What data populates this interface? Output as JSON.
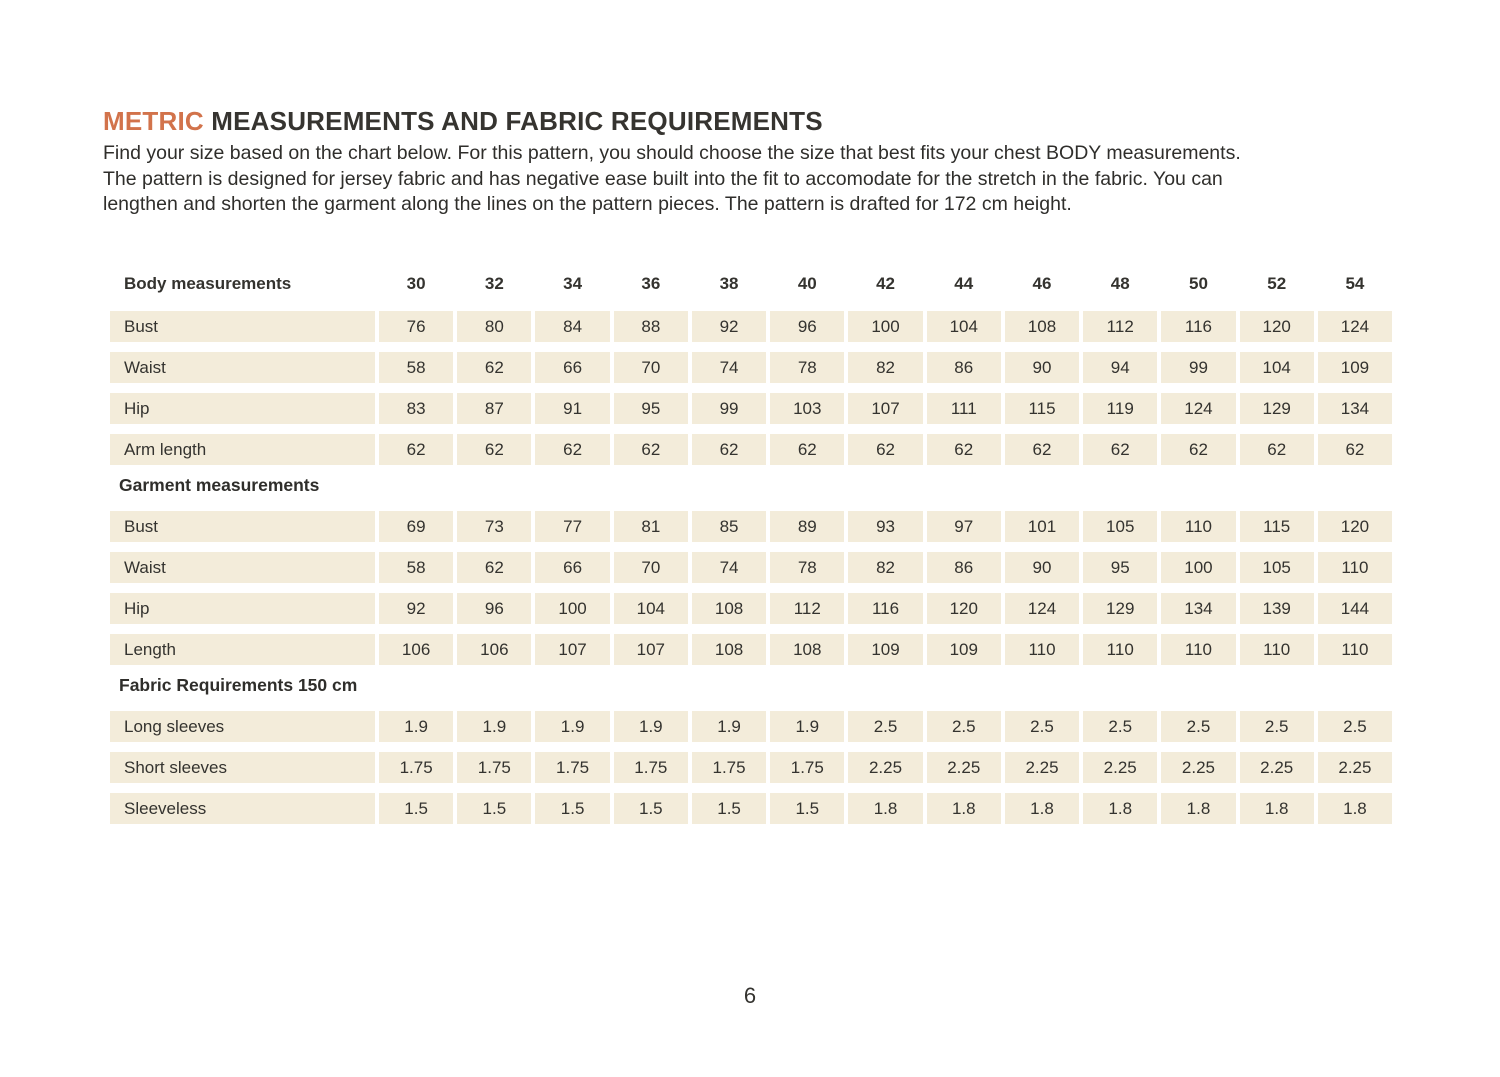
{
  "page": {
    "title_accent": "METRIC",
    "title_rest": " MEASUREMENTS AND FABRIC REQUIREMENTS",
    "intro_lines": [
      "Find your size based on the chart below. For this pattern, you should choose the size that best fits your chest BODY measurements.",
      "The pattern is designed for jersey fabric and has negative ease built into the fit to accomodate for the stretch in the fabric. You can",
      "lengthen and shorten the garment along the lines on the pattern pieces. The pattern is drafted for 172 cm height."
    ],
    "page_number": "6"
  },
  "colors": {
    "accent_orange": "#d2734b",
    "cell_cream": "#f3ecda",
    "text_dark": "#2f2e2b",
    "background": "#ffffff"
  },
  "table": {
    "sizes": [
      "30",
      "32",
      "34",
      "36",
      "38",
      "40",
      "42",
      "44",
      "46",
      "48",
      "50",
      "52",
      "54"
    ],
    "sections": [
      {
        "header": "Body measurements",
        "rows": [
          {
            "label": "Bust",
            "values": [
              "76",
              "80",
              "84",
              "88",
              "92",
              "96",
              "100",
              "104",
              "108",
              "112",
              "116",
              "120",
              "124"
            ]
          },
          {
            "label": "Waist",
            "values": [
              "58",
              "62",
              "66",
              "70",
              "74",
              "78",
              "82",
              "86",
              "90",
              "94",
              "99",
              "104",
              "109"
            ]
          },
          {
            "label": "Hip",
            "values": [
              "83",
              "87",
              "91",
              "95",
              "99",
              "103",
              "107",
              "111",
              "115",
              "119",
              "124",
              "129",
              "134"
            ]
          },
          {
            "label": "Arm length",
            "values": [
              "62",
              "62",
              "62",
              "62",
              "62",
              "62",
              "62",
              "62",
              "62",
              "62",
              "62",
              "62",
              "62"
            ]
          }
        ]
      },
      {
        "header": "Garment measurements",
        "rows": [
          {
            "label": "Bust",
            "values": [
              "69",
              "73",
              "77",
              "81",
              "85",
              "89",
              "93",
              "97",
              "101",
              "105",
              "110",
              "115",
              "120"
            ]
          },
          {
            "label": "Waist",
            "values": [
              "58",
              "62",
              "66",
              "70",
              "74",
              "78",
              "82",
              "86",
              "90",
              "95",
              "100",
              "105",
              "110"
            ]
          },
          {
            "label": "Hip",
            "values": [
              "92",
              "96",
              "100",
              "104",
              "108",
              "112",
              "116",
              "120",
              "124",
              "129",
              "134",
              "139",
              "144"
            ]
          },
          {
            "label": "Length",
            "values": [
              "106",
              "106",
              "107",
              "107",
              "108",
              "108",
              "109",
              "109",
              "110",
              "110",
              "110",
              "110",
              "110"
            ]
          }
        ]
      },
      {
        "header": "Fabric Requirements 150 cm",
        "rows": [
          {
            "label": "Long sleeves",
            "values": [
              "1.9",
              "1.9",
              "1.9",
              "1.9",
              "1.9",
              "1.9",
              "2.5",
              "2.5",
              "2.5",
              "2.5",
              "2.5",
              "2.5",
              "2.5"
            ]
          },
          {
            "label": "Short sleeves",
            "values": [
              "1.75",
              "1.75",
              "1.75",
              "1.75",
              "1.75",
              "1.75",
              "2.25",
              "2.25",
              "2.25",
              "2.25",
              "2.25",
              "2.25",
              "2.25"
            ]
          },
          {
            "label": "Sleeveless",
            "values": [
              "1.5",
              "1.5",
              "1.5",
              "1.5",
              "1.5",
              "1.5",
              "1.8",
              "1.8",
              "1.8",
              "1.8",
              "1.8",
              "1.8",
              "1.8"
            ]
          }
        ]
      }
    ]
  }
}
